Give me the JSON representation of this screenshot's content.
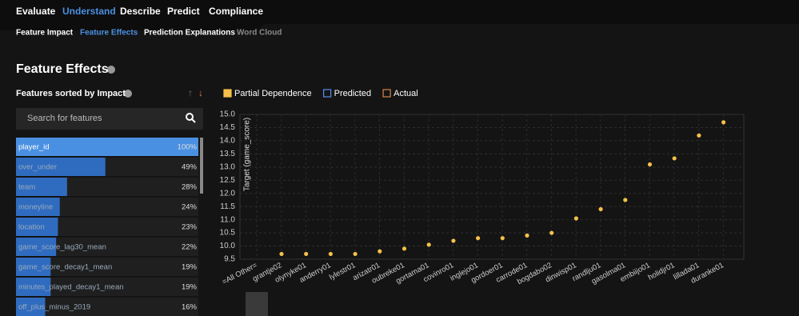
{
  "nav": {
    "tabs": [
      "Evaluate",
      "Understand",
      "Describe",
      "Predict",
      "Compliance"
    ],
    "active_tab": 1,
    "subtabs": [
      "Feature Impact",
      "Feature Effects",
      "Prediction Explanations",
      "Word Cloud"
    ],
    "active_subtab": 1,
    "disabled_subtab": 3
  },
  "page_title": "Feature Effects",
  "features_panel": {
    "title": "Features sorted by Impact",
    "search_placeholder": "Search for features",
    "features": [
      {
        "name": "player_id",
        "impact": 100,
        "label": "100%"
      },
      {
        "name": "over_under",
        "impact": 49,
        "label": "49%"
      },
      {
        "name": "team",
        "impact": 28,
        "label": "28%"
      },
      {
        "name": "moneyline",
        "impact": 24,
        "label": "24%"
      },
      {
        "name": "location",
        "impact": 23,
        "label": "23%"
      },
      {
        "name": "game_score_lag30_mean",
        "impact": 22,
        "label": "22%"
      },
      {
        "name": "game_score_decay1_mean",
        "impact": 19,
        "label": "19%"
      },
      {
        "name": "minutes_played_decay1_mean",
        "impact": 19,
        "label": "19%"
      },
      {
        "name": "off_plus_minus_2019",
        "impact": 16,
        "label": "16%"
      }
    ]
  },
  "chart_data": {
    "type": "dot",
    "y_label": "Target (game_score)",
    "categories": [
      "=All Other=",
      "grantje02",
      "olynyke01",
      "anderry01",
      "lylestr01",
      "arizatr01",
      "oubreke01",
      "gortama01",
      "covinro01",
      "inglejo01",
      "gordoer01",
      "carrode01",
      "bogdabo02",
      "dinwisp01",
      "randlju01",
      "gasolma01",
      "embiijo01",
      "holidjr01",
      "lillada01",
      "duranke01"
    ],
    "series": [
      {
        "name": "Partial Dependence",
        "color": "#f5c04a",
        "checked": true,
        "values": [
          null,
          9.7,
          9.7,
          9.7,
          9.7,
          9.8,
          9.9,
          10.05,
          10.2,
          10.3,
          10.3,
          10.4,
          10.5,
          11.05,
          11.4,
          11.75,
          13.1,
          13.33,
          14.2,
          14.7
        ]
      },
      {
        "name": "Predicted",
        "color": "#5b8def",
        "checked": false
      },
      {
        "name": "Actual",
        "color": "#d9844a",
        "checked": false
      }
    ],
    "ylim": [
      9.5,
      15.0
    ],
    "yticks": [
      9.5,
      {
        "value": 10,
        "label": "10.0"
      },
      10.5,
      {
        "value": 11,
        "label": "11.0"
      },
      11.5,
      {
        "value": 12,
        "label": "12.0"
      },
      12.5,
      {
        "value": 13,
        "label": "13.0"
      },
      13.5,
      {
        "value": 14,
        "label": "14.0"
      },
      14.5,
      {
        "value": 15,
        "label": "15.0"
      }
    ],
    "grid": true
  }
}
